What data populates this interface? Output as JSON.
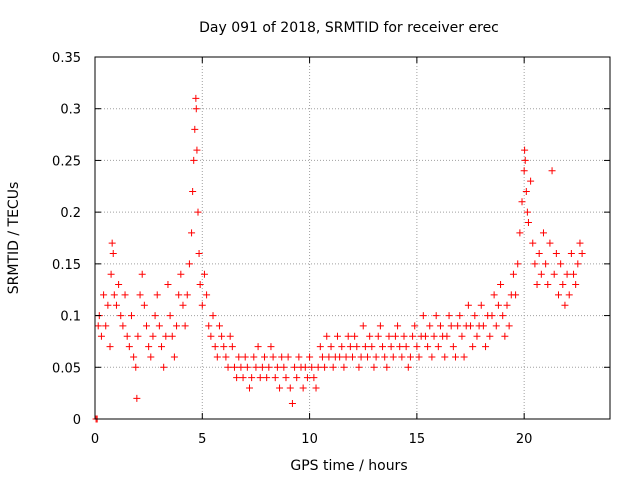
{
  "chart_data": {
    "type": "scatter",
    "title": "Day 091 of 2018, SRMTID for receiver erec",
    "xlabel": "GPS time / hours",
    "ylabel": "SRMTID / TECUs",
    "xlim": [
      0,
      24
    ],
    "ylim": [
      0,
      0.35
    ],
    "grid": true,
    "marker": "+",
    "colors": {
      "points": "#ff0000",
      "grid": "#a0a0a0",
      "axes": "#000000"
    },
    "x_ticks": [
      {
        "value": 0,
        "label": "0"
      },
      {
        "value": 5,
        "label": "5"
      },
      {
        "value": 10,
        "label": "10"
      },
      {
        "value": 15,
        "label": "15"
      },
      {
        "value": 20,
        "label": "20"
      }
    ],
    "y_ticks": [
      {
        "value": 0,
        "label": "0"
      },
      {
        "value": 0.05,
        "label": "0.05"
      },
      {
        "value": 0.1,
        "label": "0.1"
      },
      {
        "value": 0.15,
        "label": "0.15"
      },
      {
        "value": 0.2,
        "label": "0.2"
      },
      {
        "value": 0.25,
        "label": "0.25"
      },
      {
        "value": 0.3,
        "label": "0.3"
      },
      {
        "value": 0.35,
        "label": "0.35"
      }
    ],
    "series": [
      {
        "name": "SRMTID",
        "points": [
          [
            0.05,
            0.0
          ],
          [
            0.1,
            0.0
          ],
          [
            0.15,
            0.09
          ],
          [
            0.2,
            0.1
          ],
          [
            0.3,
            0.08
          ],
          [
            0.4,
            0.12
          ],
          [
            0.5,
            0.09
          ],
          [
            0.6,
            0.11
          ],
          [
            0.7,
            0.07
          ],
          [
            0.75,
            0.14
          ],
          [
            0.8,
            0.17
          ],
          [
            0.85,
            0.16
          ],
          [
            0.9,
            0.12
          ],
          [
            1.0,
            0.11
          ],
          [
            1.1,
            0.13
          ],
          [
            1.2,
            0.1
          ],
          [
            1.3,
            0.09
          ],
          [
            1.4,
            0.12
          ],
          [
            1.5,
            0.08
          ],
          [
            1.6,
            0.07
          ],
          [
            1.7,
            0.1
          ],
          [
            1.8,
            0.06
          ],
          [
            1.9,
            0.05
          ],
          [
            1.95,
            0.02
          ],
          [
            2.0,
            0.08
          ],
          [
            2.1,
            0.12
          ],
          [
            2.2,
            0.14
          ],
          [
            2.3,
            0.11
          ],
          [
            2.4,
            0.09
          ],
          [
            2.5,
            0.07
          ],
          [
            2.6,
            0.06
          ],
          [
            2.7,
            0.08
          ],
          [
            2.8,
            0.1
          ],
          [
            2.9,
            0.12
          ],
          [
            3.0,
            0.09
          ],
          [
            3.1,
            0.07
          ],
          [
            3.2,
            0.05
          ],
          [
            3.3,
            0.08
          ],
          [
            3.4,
            0.13
          ],
          [
            3.5,
            0.1
          ],
          [
            3.6,
            0.08
          ],
          [
            3.7,
            0.06
          ],
          [
            3.8,
            0.09
          ],
          [
            3.9,
            0.12
          ],
          [
            4.0,
            0.14
          ],
          [
            4.1,
            0.11
          ],
          [
            4.2,
            0.09
          ],
          [
            4.3,
            0.12
          ],
          [
            4.4,
            0.15
          ],
          [
            4.5,
            0.18
          ],
          [
            4.55,
            0.22
          ],
          [
            4.6,
            0.25
          ],
          [
            4.65,
            0.28
          ],
          [
            4.7,
            0.31
          ],
          [
            4.72,
            0.3
          ],
          [
            4.75,
            0.26
          ],
          [
            4.8,
            0.2
          ],
          [
            4.85,
            0.16
          ],
          [
            4.9,
            0.13
          ],
          [
            5.0,
            0.11
          ],
          [
            5.1,
            0.14
          ],
          [
            5.2,
            0.12
          ],
          [
            5.3,
            0.09
          ],
          [
            5.4,
            0.08
          ],
          [
            5.5,
            0.1
          ],
          [
            5.6,
            0.07
          ],
          [
            5.7,
            0.06
          ],
          [
            5.8,
            0.09
          ],
          [
            5.9,
            0.08
          ],
          [
            6.0,
            0.07
          ],
          [
            6.1,
            0.06
          ],
          [
            6.2,
            0.05
          ],
          [
            6.3,
            0.08
          ],
          [
            6.4,
            0.07
          ],
          [
            6.5,
            0.05
          ],
          [
            6.6,
            0.04
          ],
          [
            6.7,
            0.06
          ],
          [
            6.8,
            0.05
          ],
          [
            6.9,
            0.04
          ],
          [
            7.0,
            0.06
          ],
          [
            7.1,
            0.05
          ],
          [
            7.2,
            0.03
          ],
          [
            7.3,
            0.04
          ],
          [
            7.4,
            0.06
          ],
          [
            7.5,
            0.05
          ],
          [
            7.6,
            0.07
          ],
          [
            7.7,
            0.04
          ],
          [
            7.8,
            0.05
          ],
          [
            7.9,
            0.06
          ],
          [
            8.0,
            0.04
          ],
          [
            8.1,
            0.05
          ],
          [
            8.2,
            0.07
          ],
          [
            8.3,
            0.06
          ],
          [
            8.4,
            0.04
          ],
          [
            8.5,
            0.05
          ],
          [
            8.6,
            0.03
          ],
          [
            8.7,
            0.06
          ],
          [
            8.8,
            0.05
          ],
          [
            8.9,
            0.04
          ],
          [
            9.0,
            0.06
          ],
          [
            9.1,
            0.03
          ],
          [
            9.2,
            0.015
          ],
          [
            9.3,
            0.05
          ],
          [
            9.4,
            0.04
          ],
          [
            9.5,
            0.06
          ],
          [
            9.6,
            0.05
          ],
          [
            9.7,
            0.03
          ],
          [
            9.8,
            0.05
          ],
          [
            9.9,
            0.04
          ],
          [
            10.0,
            0.06
          ],
          [
            10.1,
            0.05
          ],
          [
            10.2,
            0.04
          ],
          [
            10.3,
            0.03
          ],
          [
            10.4,
            0.05
          ],
          [
            10.5,
            0.07
          ],
          [
            10.6,
            0.06
          ],
          [
            10.7,
            0.05
          ],
          [
            10.8,
            0.08
          ],
          [
            10.9,
            0.06
          ],
          [
            11.0,
            0.07
          ],
          [
            11.1,
            0.05
          ],
          [
            11.2,
            0.06
          ],
          [
            11.3,
            0.08
          ],
          [
            11.4,
            0.06
          ],
          [
            11.5,
            0.07
          ],
          [
            11.6,
            0.05
          ],
          [
            11.7,
            0.06
          ],
          [
            11.8,
            0.08
          ],
          [
            11.9,
            0.07
          ],
          [
            12.0,
            0.06
          ],
          [
            12.1,
            0.08
          ],
          [
            12.2,
            0.07
          ],
          [
            12.3,
            0.05
          ],
          [
            12.4,
            0.06
          ],
          [
            12.5,
            0.09
          ],
          [
            12.6,
            0.07
          ],
          [
            12.7,
            0.06
          ],
          [
            12.8,
            0.08
          ],
          [
            12.9,
            0.07
          ],
          [
            13.0,
            0.05
          ],
          [
            13.1,
            0.06
          ],
          [
            13.2,
            0.08
          ],
          [
            13.3,
            0.09
          ],
          [
            13.4,
            0.07
          ],
          [
            13.5,
            0.06
          ],
          [
            13.6,
            0.05
          ],
          [
            13.7,
            0.08
          ],
          [
            13.8,
            0.07
          ],
          [
            13.9,
            0.06
          ],
          [
            14.0,
            0.08
          ],
          [
            14.1,
            0.09
          ],
          [
            14.2,
            0.07
          ],
          [
            14.3,
            0.06
          ],
          [
            14.4,
            0.08
          ],
          [
            14.5,
            0.07
          ],
          [
            14.6,
            0.05
          ],
          [
            14.7,
            0.06
          ],
          [
            14.8,
            0.08
          ],
          [
            14.9,
            0.09
          ],
          [
            15.0,
            0.07
          ],
          [
            15.1,
            0.06
          ],
          [
            15.2,
            0.08
          ],
          [
            15.3,
            0.1
          ],
          [
            15.4,
            0.08
          ],
          [
            15.5,
            0.07
          ],
          [
            15.6,
            0.09
          ],
          [
            15.7,
            0.06
          ],
          [
            15.8,
            0.08
          ],
          [
            15.9,
            0.1
          ],
          [
            16.0,
            0.07
          ],
          [
            16.1,
            0.09
          ],
          [
            16.2,
            0.08
          ],
          [
            16.3,
            0.06
          ],
          [
            16.4,
            0.08
          ],
          [
            16.5,
            0.1
          ],
          [
            16.6,
            0.09
          ],
          [
            16.7,
            0.07
          ],
          [
            16.8,
            0.06
          ],
          [
            16.9,
            0.09
          ],
          [
            17.0,
            0.1
          ],
          [
            17.1,
            0.08
          ],
          [
            17.2,
            0.06
          ],
          [
            17.3,
            0.09
          ],
          [
            17.4,
            0.11
          ],
          [
            17.5,
            0.09
          ],
          [
            17.6,
            0.07
          ],
          [
            17.7,
            0.1
          ],
          [
            17.8,
            0.08
          ],
          [
            17.9,
            0.09
          ],
          [
            18.0,
            0.11
          ],
          [
            18.1,
            0.09
          ],
          [
            18.2,
            0.07
          ],
          [
            18.3,
            0.1
          ],
          [
            18.4,
            0.08
          ],
          [
            18.5,
            0.1
          ],
          [
            18.6,
            0.12
          ],
          [
            18.7,
            0.09
          ],
          [
            18.8,
            0.11
          ],
          [
            18.9,
            0.13
          ],
          [
            19.0,
            0.1
          ],
          [
            19.1,
            0.08
          ],
          [
            19.2,
            0.11
          ],
          [
            19.3,
            0.09
          ],
          [
            19.4,
            0.12
          ],
          [
            19.5,
            0.14
          ],
          [
            19.6,
            0.12
          ],
          [
            19.7,
            0.15
          ],
          [
            19.8,
            0.18
          ],
          [
            19.9,
            0.21
          ],
          [
            20.0,
            0.24
          ],
          [
            20.02,
            0.26
          ],
          [
            20.05,
            0.25
          ],
          [
            20.1,
            0.22
          ],
          [
            20.15,
            0.2
          ],
          [
            20.2,
            0.19
          ],
          [
            20.3,
            0.23
          ],
          [
            20.4,
            0.17
          ],
          [
            20.5,
            0.15
          ],
          [
            20.6,
            0.13
          ],
          [
            20.7,
            0.16
          ],
          [
            20.8,
            0.14
          ],
          [
            20.9,
            0.18
          ],
          [
            21.0,
            0.15
          ],
          [
            21.1,
            0.13
          ],
          [
            21.2,
            0.17
          ],
          [
            21.3,
            0.24
          ],
          [
            21.4,
            0.14
          ],
          [
            21.5,
            0.16
          ],
          [
            21.6,
            0.12
          ],
          [
            21.7,
            0.15
          ],
          [
            21.8,
            0.13
          ],
          [
            21.9,
            0.11
          ],
          [
            22.0,
            0.14
          ],
          [
            22.1,
            0.12
          ],
          [
            22.2,
            0.16
          ],
          [
            22.3,
            0.14
          ],
          [
            22.4,
            0.13
          ],
          [
            22.5,
            0.15
          ],
          [
            22.6,
            0.17
          ],
          [
            22.7,
            0.16
          ]
        ]
      }
    ]
  }
}
